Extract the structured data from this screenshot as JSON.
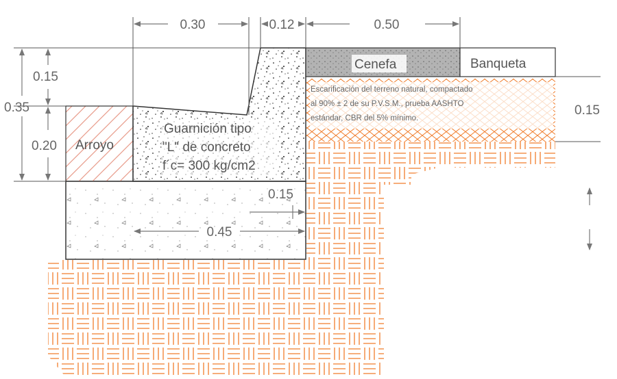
{
  "dimensions": {
    "top_030": "0.30",
    "top_012": "0.12",
    "top_050": "0.50",
    "left_015": "0.15",
    "left_035": "0.35",
    "left_020": "0.20",
    "right_015": "0.15",
    "inner_015": "0.15",
    "base_045": "0.45"
  },
  "labels": {
    "cenefa": "Cenefa",
    "banqueta": "Banqueta",
    "arroyo": "Arroyo",
    "guarnicion_line1": "Guarnición tipo",
    "guarnicion_line2": "\"L\" de concreto",
    "guarnicion_line3": "f´c= 300 kg/cm2"
  },
  "note": {
    "line1": "Escarificación del terreno natural, compactado",
    "line2": "al 90% ± 2 de su P.V.S.M., prueba AASHTO",
    "line3": "estándar, CBR del 5% mínimo."
  },
  "colors": {
    "line": "#444444",
    "dim": "#777777",
    "orange": "#f07c2a",
    "arroyo_hatch": "#e89b8a",
    "cenefa_fill": "#b3b3b3"
  }
}
